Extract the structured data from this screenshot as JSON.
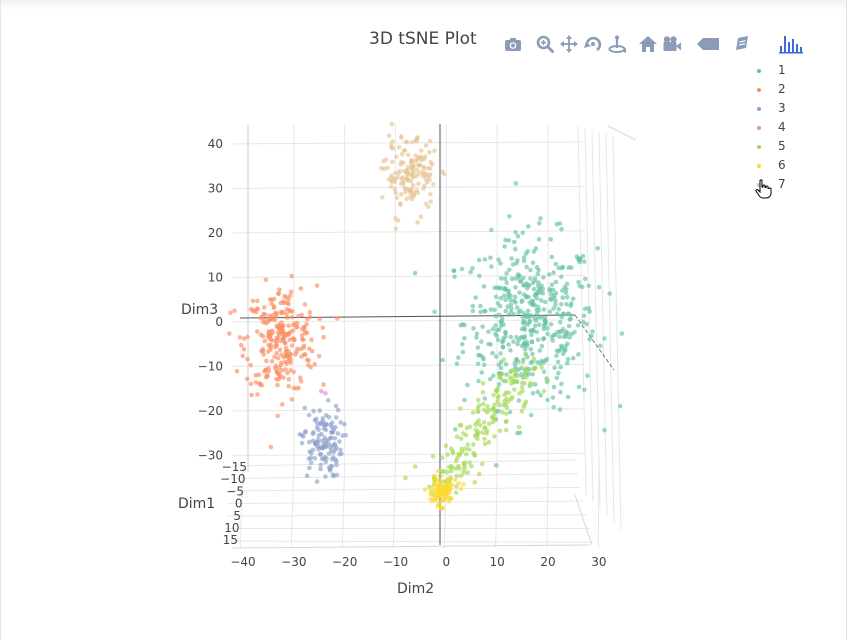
{
  "chart_data": {
    "type": "scatter",
    "title": "3D tSNE Plot",
    "axes": {
      "x": {
        "label": "Dim1",
        "ticks": [
          "−15",
          "−10",
          "−5",
          "0",
          "5",
          "10",
          "15"
        ],
        "range": [
          -15,
          15
        ]
      },
      "y": {
        "label": "Dim2",
        "ticks": [
          "−40",
          "−30",
          "−20",
          "−10",
          "0",
          "10",
          "20",
          "30"
        ],
        "range": [
          -40,
          30
        ]
      },
      "z": {
        "label": "Dim3",
        "ticks": [
          "40",
          "30",
          "20",
          "10",
          "0",
          "−10",
          "−20",
          "−30"
        ],
        "range": [
          -35,
          42
        ]
      }
    },
    "series": [
      {
        "name": "1",
        "color": "#66c2a5",
        "cluster": {
          "dim2": 16.5,
          "dim3": 0,
          "spread_dim2": 6.5,
          "spread_dim3": 9.5,
          "count": 460
        }
      },
      {
        "name": "2",
        "color": "#fc8d62",
        "cluster": {
          "dim2": -32.5,
          "dim3": -4,
          "spread_dim2": 3.5,
          "spread_dim3": 6,
          "count": 260
        }
      },
      {
        "name": "3",
        "color": "#8da0cb",
        "cluster": {
          "dim2": -24.5,
          "dim3": -27,
          "spread_dim2": 2,
          "spread_dim3": 4,
          "count": 120
        }
      },
      {
        "name": "4",
        "color": "#e78ac3",
        "cluster": {
          "dim2": -24,
          "dim3": -16,
          "spread_dim2": 0.3,
          "spread_dim3": 0.3,
          "count": 2
        }
      },
      {
        "name": "5",
        "color": "#a6d854",
        "cluster": {
          "dim2": 8,
          "dim3": -25,
          "spread_dim2": 4,
          "spread_dim3": 4,
          "count": 190
        }
      },
      {
        "name": "6",
        "color": "#ffd92f",
        "cluster": {
          "dim2": -1,
          "dim3": -38,
          "spread_dim2": 1.5,
          "spread_dim3": 1.5,
          "count": 90
        }
      },
      {
        "name": "7",
        "color": "#e5c494",
        "cluster": {
          "dim2": -7,
          "dim3": 33,
          "spread_dim2": 2.5,
          "spread_dim3": 4,
          "count": 150
        }
      }
    ],
    "grid": true,
    "legend_position": "top-right"
  },
  "modebar": {
    "buttons": [
      {
        "name": "camera-icon"
      },
      {
        "name": "zoom-icon"
      },
      {
        "name": "pan-icon"
      },
      {
        "name": "orbit-rotation-icon"
      },
      {
        "name": "turntable-rotation-icon"
      },
      {
        "name": "home-icon"
      },
      {
        "name": "camera-default-icon"
      },
      {
        "name": "spike-lines-icon"
      },
      {
        "name": "hover-data-icon"
      },
      {
        "name": "plotly-logo-icon"
      }
    ],
    "icon_color": "#8c9bb8",
    "logo_color": "#3f6ad8"
  }
}
